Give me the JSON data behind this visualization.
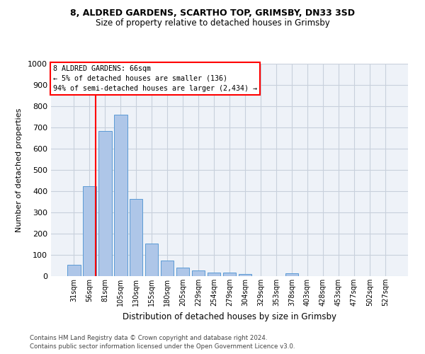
{
  "title1": "8, ALDRED GARDENS, SCARTHO TOP, GRIMSBY, DN33 3SD",
  "title2": "Size of property relative to detached houses in Grimsby",
  "xlabel": "Distribution of detached houses by size in Grimsby",
  "ylabel": "Number of detached properties",
  "footer1": "Contains HM Land Registry data © Crown copyright and database right 2024.",
  "footer2": "Contains public sector information licensed under the Open Government Licence v3.0.",
  "bar_labels": [
    "31sqm",
    "56sqm",
    "81sqm",
    "105sqm",
    "130sqm",
    "155sqm",
    "180sqm",
    "205sqm",
    "229sqm",
    "254sqm",
    "279sqm",
    "304sqm",
    "329sqm",
    "353sqm",
    "378sqm",
    "403sqm",
    "428sqm",
    "453sqm",
    "477sqm",
    "502sqm",
    "527sqm"
  ],
  "bar_values": [
    52,
    422,
    685,
    760,
    362,
    155,
    75,
    40,
    27,
    17,
    17,
    10,
    0,
    0,
    12,
    0,
    0,
    0,
    0,
    0,
    0
  ],
  "bar_color": "#aec6e8",
  "bar_edge_color": "#5b9bd5",
  "annotation_box_text": "8 ALDRED GARDENS: 66sqm\n← 5% of detached houses are smaller (136)\n94% of semi-detached houses are larger (2,434) →",
  "vline_color": "red",
  "ylim": [
    0,
    1000
  ],
  "yticks": [
    0,
    100,
    200,
    300,
    400,
    500,
    600,
    700,
    800,
    900,
    1000
  ],
  "grid_color": "#c8d0dc",
  "background_color": "#eef2f8",
  "figsize": [
    6.0,
    5.0
  ],
  "dpi": 100
}
